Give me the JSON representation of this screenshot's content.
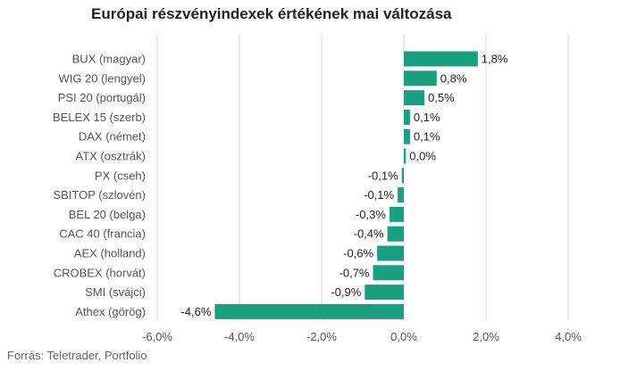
{
  "title": "Európai részvényindexek értékének mai változása",
  "source": "Forrás: Teletrader, Portfolio",
  "colors": {
    "bar": "#1aa080",
    "grid": "#d9d9d9",
    "text": "#555555"
  },
  "chart_data": {
    "type": "bar",
    "orientation": "horizontal",
    "title": "Európai részvényindexek értékének mai változása",
    "categories": [
      "BUX (magyar)",
      "WIG 20 (lengyel)",
      "PSI 20 (portugál)",
      "BELEX 15 (szerb)",
      "DAX (német)",
      "ATX (osztrák)",
      "PX (cseh)",
      "SBITOP (szlovén)",
      "BEL 20 (belga)",
      "CAC 40 (francia)",
      "AEX (holland)",
      "CROBEX (horvát)",
      "SMI (svájci)",
      "Athex (görög)"
    ],
    "values": [
      1.8,
      0.8,
      0.5,
      0.15,
      0.15,
      0.05,
      -0.05,
      -0.15,
      -0.35,
      -0.4,
      -0.65,
      -0.75,
      -0.95,
      -4.6
    ],
    "value_labels": [
      "1,8%",
      "0,8%",
      "0,5%",
      "0,1%",
      "0,1%",
      "0,0%",
      "-0,1%",
      "-0,1%",
      "-0,3%",
      "-0,4%",
      "-0,6%",
      "-0,7%",
      "-0,9%",
      "-4,6%"
    ],
    "xlim": [
      -6,
      4
    ],
    "xticks": [
      -6,
      -4,
      -2,
      0,
      2,
      4
    ],
    "xtick_labels": [
      "-6,0%",
      "-4,0%",
      "-2,0%",
      "0,0%",
      "2,0%",
      "4,0%"
    ],
    "xlabel": "",
    "ylabel": "",
    "grid": "vertical",
    "legend": "none"
  }
}
